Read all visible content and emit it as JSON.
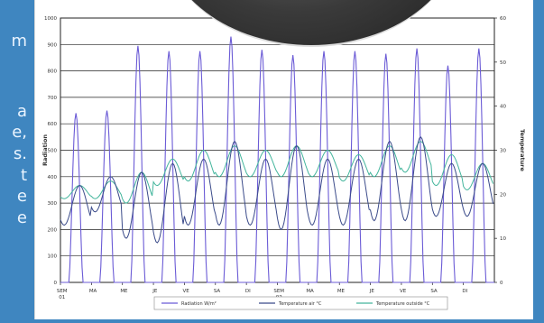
{
  "side_text": [
    "m",
    "a",
    "e,",
    "s.",
    "t",
    "e",
    "e"
  ],
  "chart_data": {
    "type": "line",
    "title": "",
    "y_left_label": "Radiation",
    "y_right_label": "Temperature",
    "y_left_ticks": [
      "1000",
      "900",
      "800",
      "700",
      "600",
      "500",
      "400",
      "300",
      "200",
      "100",
      "0"
    ],
    "y_right_ticks": [
      "60",
      "50",
      "40",
      "30",
      "20",
      "10",
      "0"
    ],
    "ylim_left": [
      0,
      1000
    ],
    "ylim_right": [
      0,
      60
    ],
    "x_tick_labels": [
      [
        "SEM",
        "01"
      ],
      [
        "MA",
        ""
      ],
      [
        "ME",
        ""
      ],
      [
        "JE",
        ""
      ],
      [
        "VE",
        ""
      ],
      [
        "SA",
        ""
      ],
      [
        "DI",
        ""
      ],
      [
        "SEM",
        "02"
      ],
      [
        "MA",
        ""
      ],
      [
        "ME",
        ""
      ],
      [
        "JE",
        ""
      ],
      [
        "VE",
        ""
      ],
      [
        "SA",
        ""
      ],
      [
        "DI",
        ""
      ]
    ],
    "grid": true,
    "series": [
      {
        "name": "Radiation W/m²",
        "axis": "left",
        "color": "#6b5bd6",
        "daily_peak": [
          640,
          650,
          895,
          875,
          875,
          930,
          880,
          860,
          875,
          875,
          865,
          885,
          820,
          885
        ],
        "secondary_peak": [
          280,
          360,
          200,
          0,
          0,
          0,
          280,
          0,
          0,
          0,
          0,
          0,
          0,
          0
        ]
      },
      {
        "name": "Temperature air °C",
        "axis": "right",
        "color": "#3b4b8a",
        "daily_min": [
          13,
          16,
          10,
          9,
          13,
          13,
          13,
          12,
          13,
          13,
          14,
          14,
          15,
          15
        ],
        "daily_max": [
          22,
          24,
          25,
          27,
          28,
          32,
          28,
          31,
          28,
          28,
          32,
          33,
          27,
          27
        ]
      },
      {
        "name": "Temperature outside °C",
        "axis": "right",
        "color": "#43b59c",
        "daily_min": [
          19,
          19,
          18,
          22,
          23,
          24,
          24,
          24,
          24,
          23,
          24,
          25,
          22,
          21
        ],
        "daily_max": [
          22,
          23,
          25,
          28,
          30,
          31,
          30,
          31,
          30,
          29,
          31,
          32,
          29,
          27
        ]
      }
    ],
    "legend_position": "bottom"
  }
}
